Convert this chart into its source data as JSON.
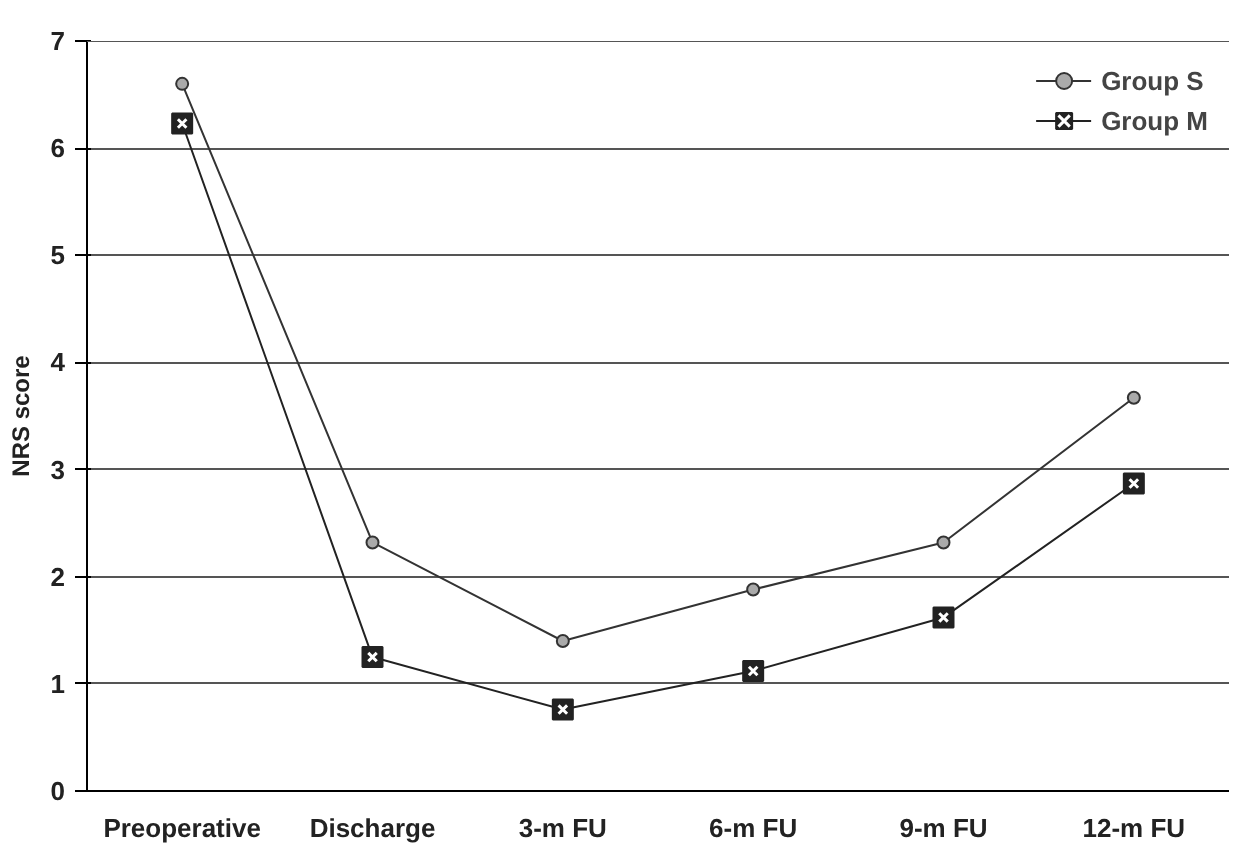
{
  "chart_data": {
    "type": "line",
    "ylabel": "NRS score",
    "categories": [
      "Preoperative",
      "Discharge",
      "3-m FU",
      "6-m FU",
      "9-m FU",
      "12-m FU"
    ],
    "series": [
      {
        "name": "Group S",
        "color": "#333333",
        "marker": "circle",
        "values": [
          6.6,
          2.32,
          1.4,
          1.88,
          2.32,
          3.67
        ]
      },
      {
        "name": "Group M",
        "color": "#222222",
        "marker": "square",
        "values": [
          6.23,
          1.25,
          0.76,
          1.12,
          1.62,
          2.87
        ]
      }
    ],
    "ylim": [
      0,
      7
    ],
    "yticks": [
      0,
      1,
      2,
      3,
      4,
      5,
      6,
      7
    ],
    "grid": "y",
    "legend": "top right",
    "line_style": "solid"
  }
}
